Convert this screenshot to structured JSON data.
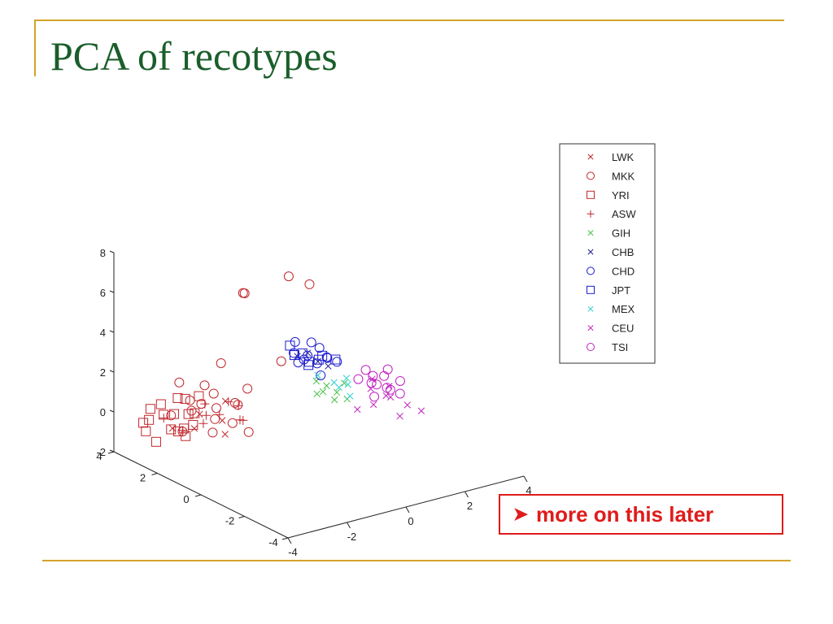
{
  "slide": {
    "title": "PCA of recotypes",
    "note": "more on this later",
    "note_icon": "arrowhead-bullet-icon",
    "accent_color": "#d4a32a",
    "title_color": "#1b5e2a",
    "note_color": "#e01b1b"
  },
  "chart_data": {
    "type": "scatter",
    "projection": "3d",
    "title": "",
    "xlabel": "",
    "ylabel": "",
    "zlabel": "",
    "xlim": [
      -4,
      4
    ],
    "ylim": [
      -4,
      4
    ],
    "zlim": [
      -2,
      8
    ],
    "x_ticks": [
      -4,
      -2,
      0,
      2,
      4
    ],
    "y_ticks": [
      -4,
      -2,
      0,
      2,
      4
    ],
    "z_ticks": [
      -2,
      0,
      2,
      4,
      6,
      8
    ],
    "grid": false,
    "legend_position": "top-right",
    "series": [
      {
        "name": "LWK",
        "marker": "x",
        "color": "#c0282d",
        "points": [
          [
            -2.6,
            2.2,
            -0.4
          ],
          [
            -2.2,
            2.5,
            0.0
          ],
          [
            -1.8,
            2.0,
            -0.2
          ],
          [
            -2.9,
            2.8,
            -0.6
          ],
          [
            -1.4,
            2.4,
            0.4
          ],
          [
            -2.0,
            1.6,
            -0.6
          ]
        ]
      },
      {
        "name": "MKK",
        "marker": "o",
        "color": "#c0282d",
        "points": [
          [
            -2.4,
            2.6,
            0.2
          ],
          [
            -1.9,
            2.2,
            -0.2
          ],
          [
            -2.8,
            3.0,
            -0.1
          ],
          [
            -1.5,
            2.8,
            0.6
          ],
          [
            -2.2,
            1.9,
            -0.6
          ],
          [
            -1.2,
            2.1,
            0.3
          ],
          [
            -2.6,
            2.4,
            0.9
          ],
          [
            -1.7,
            3.1,
            0.0
          ],
          [
            -2.0,
            2.0,
            0.5
          ],
          [
            -3.0,
            2.2,
            -0.4
          ],
          [
            -1.0,
            2.5,
            0.1
          ],
          [
            -2.3,
            3.3,
            1.2
          ],
          [
            -1.6,
            1.8,
            -0.3
          ],
          [
            -0.8,
            2.2,
            0.9
          ],
          [
            -2.4,
            2.0,
            1.8
          ],
          [
            -1.4,
            2.6,
            2.2
          ],
          [
            0.6,
            2.2,
            6.0
          ],
          [
            -0.8,
            2.4,
            5.6
          ],
          [
            -0.6,
            2.6,
            5.4
          ],
          [
            1.6,
            2.6,
            5.0
          ],
          [
            0.2,
            2.0,
            2.0
          ],
          [
            -1.2,
            1.6,
            -0.8
          ]
        ]
      },
      {
        "name": "YRI",
        "marker": "square",
        "color": "#c0282d",
        "points": [
          [
            -2.8,
            3.0,
            -0.8
          ],
          [
            -3.4,
            3.2,
            -0.2
          ],
          [
            -3.2,
            2.8,
            0.2
          ],
          [
            -2.6,
            2.6,
            -1.0
          ],
          [
            -3.0,
            2.4,
            -0.5
          ],
          [
            -2.4,
            3.4,
            -0.4
          ],
          [
            -3.6,
            2.6,
            -0.9
          ],
          [
            -2.8,
            2.2,
            0.4
          ],
          [
            -2.2,
            2.8,
            -0.7
          ],
          [
            -3.3,
            3.6,
            -0.6
          ],
          [
            -2.5,
            3.1,
            0.6
          ],
          [
            -2.0,
            3.0,
            -0.3
          ],
          [
            -3.1,
            2.0,
            -0.1
          ],
          [
            -2.7,
            3.6,
            0.1
          ],
          [
            -3.5,
            3.0,
            0.5
          ],
          [
            -2.3,
            2.4,
            1.0
          ],
          [
            -3.8,
            2.8,
            -0.4
          ],
          [
            -2.1,
            3.3,
            0.3
          ]
        ]
      },
      {
        "name": "ASW",
        "marker": "+",
        "color": "#c0282d",
        "points": [
          [
            -2.0,
            2.6,
            -0.6
          ],
          [
            -1.6,
            2.4,
            -0.2
          ],
          [
            -2.4,
            3.0,
            -1.0
          ],
          [
            -1.2,
            2.0,
            -0.4
          ],
          [
            -1.8,
            2.8,
            0.2
          ],
          [
            -2.2,
            2.2,
            0.1
          ],
          [
            -0.8,
            2.4,
            -0.8
          ],
          [
            -2.9,
            3.2,
            -0.3
          ],
          [
            -1.0,
            2.8,
            0.0
          ],
          [
            -1.4,
            1.8,
            0.5
          ]
        ]
      },
      {
        "name": "GIH",
        "marker": "x",
        "color": "#41c041",
        "points": [
          [
            1.0,
            1.0,
            1.0
          ],
          [
            1.2,
            0.8,
            0.7
          ],
          [
            0.8,
            1.2,
            1.2
          ],
          [
            1.4,
            0.6,
            0.4
          ],
          [
            0.6,
            0.9,
            0.8
          ],
          [
            1.1,
            1.3,
            0.5
          ],
          [
            1.6,
            1.0,
            0.9
          ],
          [
            0.9,
            0.5,
            0.6
          ]
        ]
      },
      {
        "name": "CHB",
        "marker": "x",
        "color": "#1d1d8a",
        "points": [
          [
            0.8,
            1.6,
            2.4
          ],
          [
            1.0,
            1.4,
            2.0
          ],
          [
            0.6,
            1.8,
            2.2
          ],
          [
            1.2,
            1.2,
            1.8
          ]
        ]
      },
      {
        "name": "CHD",
        "marker": "o",
        "color": "#1d1dd0",
        "points": [
          [
            0.6,
            1.5,
            2.2
          ],
          [
            0.9,
            1.3,
            2.0
          ],
          [
            0.4,
            1.7,
            2.5
          ],
          [
            1.1,
            1.1,
            2.3
          ],
          [
            0.7,
            1.9,
            1.8
          ],
          [
            1.3,
            1.4,
            2.1
          ],
          [
            0.5,
            1.2,
            2.6
          ],
          [
            1.0,
            1.7,
            2.8
          ],
          [
            0.8,
            1.0,
            1.6
          ],
          [
            1.5,
            1.2,
            1.9
          ],
          [
            0.3,
            1.5,
            3.2
          ],
          [
            1.2,
            1.6,
            2.5
          ]
        ]
      },
      {
        "name": "JPT",
        "marker": "square",
        "color": "#1d1dd0",
        "points": [
          [
            0.7,
            1.4,
            2.1
          ],
          [
            0.5,
            1.8,
            2.3
          ],
          [
            1.0,
            1.2,
            2.4
          ],
          [
            0.2,
            1.6,
            3.0
          ],
          [
            0.9,
            1.7,
            1.7
          ],
          [
            1.3,
            1.0,
            2.2
          ],
          [
            0.4,
            1.3,
            2.7
          ],
          [
            1.1,
            1.5,
            2.0
          ]
        ]
      },
      {
        "name": "MEX",
        "marker": "x",
        "color": "#2dd0d0",
        "points": [
          [
            1.4,
            1.2,
            0.9
          ],
          [
            1.6,
            0.9,
            1.2
          ],
          [
            1.2,
            0.7,
            1.0
          ],
          [
            1.8,
            1.1,
            0.7
          ],
          [
            1.0,
            1.4,
            1.3
          ],
          [
            1.5,
            0.6,
            0.5
          ]
        ]
      },
      {
        "name": "CEU",
        "marker": "x",
        "color": "#c020c0",
        "points": [
          [
            2.2,
            0.6,
            0.6
          ],
          [
            2.5,
            0.3,
            0.3
          ],
          [
            2.8,
            0.5,
            0.0
          ],
          [
            2.0,
            0.2,
            0.1
          ],
          [
            3.0,
            0.0,
            -0.2
          ],
          [
            2.4,
            0.8,
            0.9
          ],
          [
            2.6,
            -0.2,
            -0.5
          ],
          [
            2.9,
            0.7,
            0.4
          ],
          [
            3.4,
            -0.1,
            -0.6
          ],
          [
            1.6,
            0.4,
            -0.1
          ]
        ]
      },
      {
        "name": "TSI",
        "marker": "o",
        "color": "#c020c0",
        "points": [
          [
            2.0,
            0.9,
            1.0
          ],
          [
            2.3,
            0.7,
            0.8
          ],
          [
            2.6,
            0.4,
            0.6
          ],
          [
            2.1,
            0.3,
            0.4
          ],
          [
            2.8,
            0.8,
            0.9
          ],
          [
            2.4,
            1.1,
            1.2
          ],
          [
            2.9,
            0.2,
            0.3
          ],
          [
            3.2,
            0.6,
            0.6
          ],
          [
            2.2,
            0.5,
            1.3
          ],
          [
            2.7,
            1.0,
            0.4
          ],
          [
            3.0,
            0.9,
            1.1
          ],
          [
            2.5,
            0.1,
            0.7
          ]
        ]
      }
    ]
  }
}
